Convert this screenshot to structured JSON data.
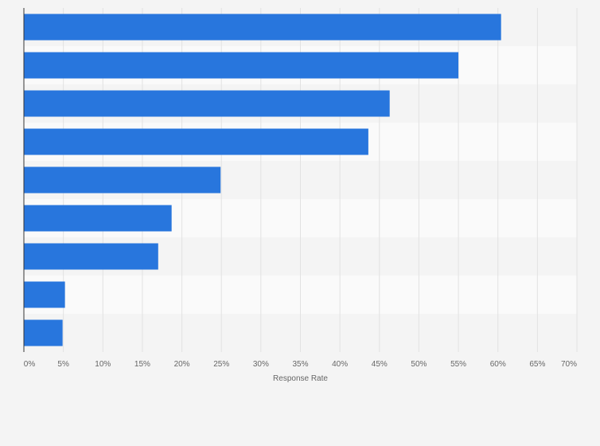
{
  "chart_data": {
    "type": "bar",
    "orientation": "horizontal",
    "title": "",
    "xlabel": "Response Rate",
    "ylabel": "",
    "categories": [
      "",
      "",
      "",
      "",
      "",
      "",
      "",
      "",
      ""
    ],
    "values": [
      60.4,
      55.0,
      46.3,
      43.6,
      24.9,
      18.7,
      17.0,
      5.2,
      4.9
    ],
    "xlim": [
      0,
      70
    ],
    "xticks": [
      0,
      5,
      10,
      15,
      20,
      25,
      30,
      35,
      40,
      45,
      50,
      55,
      60,
      65,
      70
    ],
    "xtick_labels": [
      "0%",
      "5%",
      "10%",
      "15%",
      "20%",
      "25%",
      "30%",
      "35%",
      "40%",
      "45%",
      "50%",
      "55%",
      "60%",
      "65%",
      "70%"
    ],
    "grid": true,
    "legend": "none",
    "bar_color": "#2876dd",
    "row_colors": [
      "#f4f4f4",
      "#fafafa"
    ],
    "grid_color": "#e2e2e2",
    "axis_color": "#333333"
  }
}
